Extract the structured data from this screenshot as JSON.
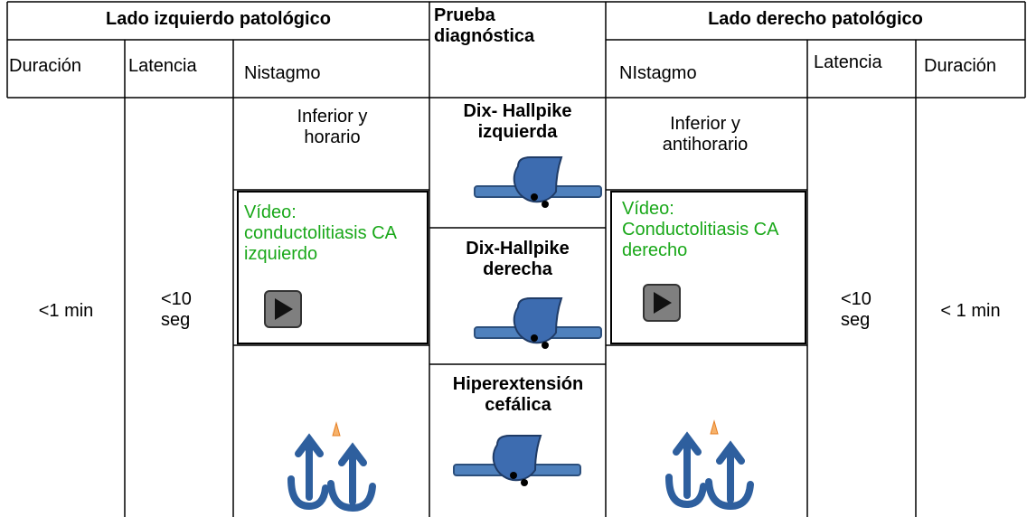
{
  "header": {
    "left": "Lado izquierdo patológico",
    "middle": "Prueba diagnóstica",
    "right": "Lado derecho patológico"
  },
  "subheaders": {
    "left": [
      "Duración",
      "Latencia",
      "Nistagmo"
    ],
    "right": [
      "NIstagmo",
      "Latencia",
      "Duración"
    ]
  },
  "left": {
    "duration": "<1 min",
    "latency": "<10 seg",
    "nystagmus": "Inferior y horario",
    "video": "Vídeo: conductolitiasis CA izquierdo"
  },
  "tests": [
    "Dix- Hallpike izquierda",
    "Dix-Hallpike derecha",
    "Hiperextensión cefálica"
  ],
  "right": {
    "duration": "< 1 min",
    "latency": "<10 seg",
    "nystagmus": "Inferior y antihorario",
    "video": "Vídeo: Conductolitiasis CA derecho"
  }
}
